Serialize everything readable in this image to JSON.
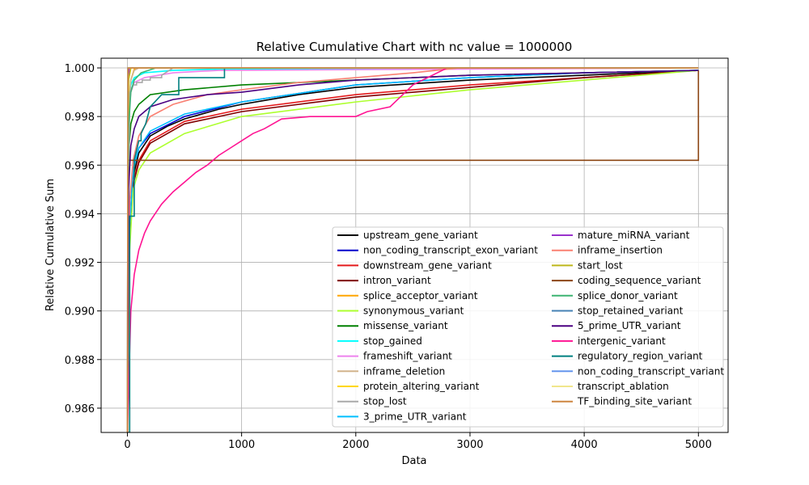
{
  "chart_data": {
    "type": "line",
    "title": "Relative Cumulative Chart with nc value = 1000000",
    "xlabel": "Data",
    "ylabel": "Relative Cumulative Sum",
    "xlim": [
      -230,
      5260
    ],
    "ylim": [
      0.985,
      1.0004
    ],
    "xticks": [
      0,
      1000,
      2000,
      3000,
      4000,
      5000
    ],
    "xtick_labels": [
      "0",
      "1000",
      "2000",
      "3000",
      "4000",
      "5000"
    ],
    "yticks": [
      0.986,
      0.988,
      0.99,
      0.992,
      0.994,
      0.996,
      0.998,
      1.0
    ],
    "ytick_labels": [
      "0.986",
      "0.988",
      "0.990",
      "0.992",
      "0.994",
      "0.996",
      "0.998",
      "1.000"
    ],
    "grid": true,
    "legend_position": "lower-right",
    "legend_columns": 2,
    "series": [
      {
        "name": "upstream_gene_variant",
        "color": "#000000",
        "x": [
          0,
          20,
          50,
          100,
          200,
          350,
          500,
          800,
          1000,
          1500,
          2000,
          3000,
          4000,
          5000
        ],
        "y": [
          0.985,
          0.993,
          0.9955,
          0.9965,
          0.9972,
          0.9976,
          0.9979,
          0.9983,
          0.9985,
          0.9989,
          0.9992,
          0.9995,
          0.9997,
          0.9999
        ]
      },
      {
        "name": "non_coding_transcript_exon_variant",
        "color": "#0000cc",
        "x": [
          0,
          20,
          50,
          100,
          200,
          500,
          1000,
          2000,
          3000,
          4000,
          5000
        ],
        "y": [
          0.985,
          0.9935,
          0.9958,
          0.9967,
          0.9973,
          0.998,
          0.9986,
          0.9993,
          0.9996,
          0.9998,
          0.9999
        ]
      },
      {
        "name": "downstream_gene_variant",
        "color": "#e41a1c",
        "x": [
          0,
          20,
          50,
          100,
          200,
          500,
          1000,
          2000,
          3000,
          4000,
          5000
        ],
        "y": [
          0.985,
          0.993,
          0.9953,
          0.9962,
          0.997,
          0.9978,
          0.9983,
          0.9989,
          0.9993,
          0.9996,
          0.9999
        ]
      },
      {
        "name": "intron_variant",
        "color": "#800000",
        "x": [
          0,
          20,
          50,
          100,
          200,
          500,
          1000,
          2000,
          3000,
          4000,
          5000
        ],
        "y": [
          0.985,
          0.993,
          0.9952,
          0.9961,
          0.9969,
          0.9977,
          0.9982,
          0.9988,
          0.9992,
          0.9996,
          0.9999
        ]
      },
      {
        "name": "splice_acceptor_variant",
        "color": "#ffa500",
        "x": [
          0,
          10,
          30,
          60,
          100,
          5000
        ],
        "y": [
          0.985,
          0.998,
          0.9995,
          0.99995,
          1.0,
          1.0
        ]
      },
      {
        "name": "synonymous_variant",
        "color": "#adff2f",
        "x": [
          0,
          20,
          50,
          100,
          200,
          500,
          1000,
          2000,
          3000,
          4000,
          5000
        ],
        "y": [
          0.985,
          0.9925,
          0.995,
          0.9958,
          0.9965,
          0.9973,
          0.998,
          0.9986,
          0.9991,
          0.9995,
          0.9999
        ]
      },
      {
        "name": "missense_variant",
        "color": "#008000",
        "x": [
          0,
          10,
          30,
          60,
          100,
          200,
          500,
          1000,
          2000,
          3000,
          5000
        ],
        "y": [
          0.985,
          0.9965,
          0.9977,
          0.9982,
          0.9985,
          0.9989,
          0.9991,
          0.9993,
          0.9995,
          0.9997,
          0.9999
        ]
      },
      {
        "name": "stop_gained",
        "color": "#00ffff",
        "x": [
          0,
          10,
          30,
          60,
          150,
          400,
          800,
          5000
        ],
        "y": [
          0.985,
          0.9985,
          0.9993,
          0.9996,
          0.9998,
          0.9999,
          0.99995,
          1.0
        ]
      },
      {
        "name": "frameshift_variant",
        "color": "#ee82ee",
        "x": [
          0,
          10,
          30,
          60,
          150,
          400,
          800,
          5000
        ],
        "y": [
          0.985,
          0.998,
          0.999,
          0.9994,
          0.9996,
          0.9998,
          0.9999,
          1.0
        ]
      },
      {
        "name": "inframe_deletion",
        "color": "#d2b48c",
        "x": [
          0,
          10,
          30,
          60,
          100,
          5000
        ],
        "y": [
          0.985,
          0.9985,
          0.9995,
          0.9999,
          1.0,
          1.0
        ]
      },
      {
        "name": "protein_altering_variant",
        "color": "#ffd700",
        "x": [
          0,
          10,
          30,
          5000
        ],
        "y": [
          0.985,
          0.9995,
          1.0,
          1.0
        ]
      },
      {
        "name": "stop_lost",
        "color": "#a9a9a9",
        "x": [
          0,
          20,
          50,
          80,
          80,
          130,
          130,
          200,
          200,
          300,
          300,
          400,
          5000
        ],
        "y": [
          0.985,
          0.999,
          0.9993,
          0.9993,
          0.9994,
          0.9994,
          0.9995,
          0.9995,
          0.9996,
          0.9996,
          0.9997,
          1.0,
          1.0
        ]
      },
      {
        "name": "3_prime_UTR_variant",
        "color": "#00bfff",
        "x": [
          0,
          20,
          50,
          100,
          200,
          500,
          1000,
          2000,
          3000,
          4000,
          5000
        ],
        "y": [
          0.985,
          0.9935,
          0.9958,
          0.9967,
          0.9974,
          0.9981,
          0.9986,
          0.9993,
          0.9996,
          0.9998,
          0.9999
        ]
      },
      {
        "name": "mature_miRNA_variant",
        "color": "#9932cc",
        "x": [
          0,
          5,
          15,
          5000
        ],
        "y": [
          0.985,
          0.999,
          1.0,
          1.0
        ]
      },
      {
        "name": "inframe_insertion",
        "color": "#fa8072",
        "x": [
          0,
          20,
          50,
          100,
          200,
          400,
          700,
          1000,
          1500,
          2000,
          2500,
          2900,
          5000
        ],
        "y": [
          0.985,
          0.9945,
          0.9962,
          0.9972,
          0.998,
          0.9985,
          0.9989,
          0.9991,
          0.9994,
          0.9996,
          0.9998,
          1.0,
          1.0
        ]
      },
      {
        "name": "start_lost",
        "color": "#bdb71b",
        "x": [
          0,
          10,
          30,
          5000
        ],
        "y": [
          0.985,
          0.9995,
          1.0,
          1.0
        ]
      },
      {
        "name": "coding_sequence_variant",
        "color": "#8b4513",
        "x": [
          0,
          3,
          3,
          5000,
          5000
        ],
        "y": [
          0.985,
          0.985,
          0.9962,
          0.9962,
          0.9999
        ]
      },
      {
        "name": "splice_donor_variant",
        "color": "#3cb371",
        "x": [
          0,
          10,
          30,
          60,
          120,
          250,
          5000
        ],
        "y": [
          0.985,
          0.9975,
          0.999,
          0.9995,
          0.9998,
          1.0,
          1.0
        ]
      },
      {
        "name": "stop_retained_variant",
        "color": "#4682b4",
        "x": [
          0,
          5,
          5000
        ],
        "y": [
          0.985,
          1.0,
          1.0
        ]
      },
      {
        "name": "5_prime_UTR_variant",
        "color": "#4b0082",
        "x": [
          0,
          10,
          30,
          60,
          100,
          200,
          400,
          700,
          1000,
          1500,
          2000,
          3000,
          4000,
          5000
        ],
        "y": [
          0.985,
          0.995,
          0.9968,
          0.9975,
          0.998,
          0.9984,
          0.9987,
          0.9989,
          0.999,
          0.9993,
          0.9995,
          0.9997,
          0.9998,
          0.9999
        ]
      },
      {
        "name": "intergenic_variant",
        "color": "#ff1493",
        "x": [
          0,
          30,
          60,
          100,
          150,
          200,
          300,
          400,
          500,
          600,
          700,
          800,
          900,
          1000,
          1100,
          1200,
          1350,
          1600,
          2000,
          2100,
          2300,
          2500,
          2800,
          5000
        ],
        "y": [
          0.985,
          0.99,
          0.9915,
          0.9925,
          0.9932,
          0.9937,
          0.9944,
          0.9949,
          0.9953,
          0.9957,
          0.996,
          0.9964,
          0.9967,
          0.997,
          0.9973,
          0.9975,
          0.9979,
          0.998,
          0.998,
          0.9982,
          0.9984,
          0.9993,
          1.0,
          1.0
        ]
      },
      {
        "name": "regulatory_region_variant",
        "color": "#008080",
        "x": [
          0,
          20,
          20,
          60,
          60,
          100,
          120,
          120,
          160,
          200,
          300,
          450,
          450,
          850,
          850,
          5000
        ],
        "y": [
          0.985,
          0.985,
          0.9939,
          0.9939,
          0.9962,
          0.997,
          0.997,
          0.9973,
          0.9977,
          0.9984,
          0.9989,
          0.9989,
          0.9996,
          0.9996,
          1.0,
          1.0
        ]
      },
      {
        "name": "non_coding_transcript_variant",
        "color": "#6495ed",
        "x": [
          0,
          5,
          5000
        ],
        "y": [
          0.985,
          1.0,
          1.0
        ]
      },
      {
        "name": "transcript_ablation",
        "color": "#f0e68c",
        "x": [
          0,
          5,
          5000
        ],
        "y": [
          0.985,
          1.0,
          1.0
        ]
      },
      {
        "name": "TF_binding_site_variant",
        "color": "#cd853f",
        "x": [
          0,
          5,
          5000
        ],
        "y": [
          0.985,
          1.0,
          1.0
        ]
      }
    ]
  }
}
